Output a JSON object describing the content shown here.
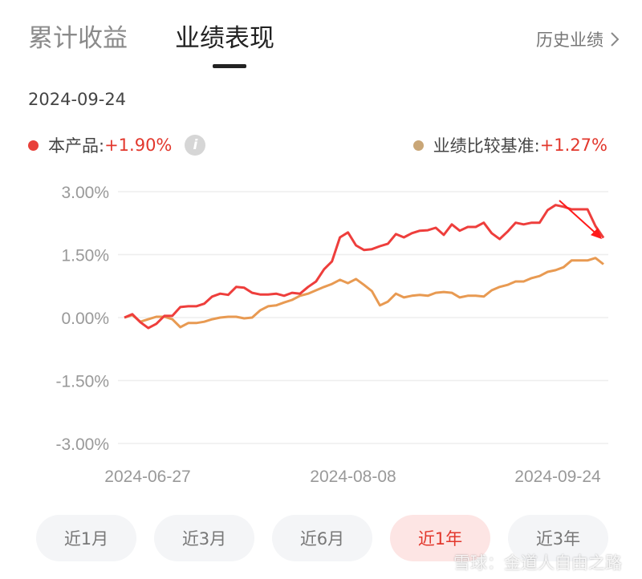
{
  "tabs": [
    {
      "label": "累计收益",
      "active": false
    },
    {
      "label": "业绩表现",
      "active": true
    }
  ],
  "history_link": {
    "label": "历史业绩",
    "icon": "chevron-right-icon"
  },
  "date": "2024-09-24",
  "legend": {
    "product": {
      "label": "本产品:",
      "value": "+1.90%",
      "color": "#e8403a"
    },
    "info_icon": "i",
    "benchmark": {
      "label": "业绩比较基准:",
      "value": "+1.27%",
      "color": "#c9a677"
    }
  },
  "chart_data": {
    "type": "line",
    "title": "",
    "ylim": [
      -3.0,
      3.0
    ],
    "yticks": [
      "3.00%",
      "1.50%",
      "0.00%",
      "-1.50%",
      "-3.00%"
    ],
    "ytick_values": [
      3.0,
      1.5,
      0,
      -1.5,
      -3.0
    ],
    "xticks": [
      "2024-06-27",
      "2024-08-08",
      "2024-09-24"
    ],
    "grid": true,
    "x_start": "2024-06-27",
    "x_end": "2024-09-24",
    "series": [
      {
        "name": "本产品",
        "color": "#ee3e3c",
        "values": [
          0,
          0.08,
          -0.11,
          -0.25,
          -0.15,
          0.04,
          0.04,
          0.25,
          0.27,
          0.27,
          0.33,
          0.5,
          0.57,
          0.54,
          0.73,
          0.71,
          0.59,
          0.55,
          0.55,
          0.57,
          0.52,
          0.59,
          0.57,
          0.73,
          0.86,
          1.15,
          1.34,
          1.91,
          2.03,
          1.72,
          1.61,
          1.63,
          1.7,
          1.76,
          1.99,
          1.91,
          2.01,
          2.07,
          2.08,
          2.14,
          1.97,
          2.22,
          2.07,
          2.16,
          2.16,
          2.26,
          2.01,
          1.87,
          2.05,
          2.26,
          2.22,
          2.26,
          2.26,
          2.56,
          2.68,
          2.64,
          2.58,
          2.58,
          2.58,
          2.18,
          1.9
        ]
      },
      {
        "name": "业绩比较基准",
        "color": "#e89a52",
        "values": [
          0,
          0.06,
          -0.1,
          -0.04,
          0.02,
          0.02,
          -0.04,
          -0.23,
          -0.13,
          -0.13,
          -0.1,
          -0.04,
          0,
          0.02,
          0.02,
          -0.02,
          0,
          0.17,
          0.27,
          0.29,
          0.36,
          0.42,
          0.52,
          0.57,
          0.65,
          0.73,
          0.8,
          0.9,
          0.82,
          0.92,
          0.78,
          0.63,
          0.29,
          0.38,
          0.57,
          0.48,
          0.52,
          0.54,
          0.52,
          0.59,
          0.61,
          0.59,
          0.48,
          0.52,
          0.52,
          0.5,
          0.65,
          0.73,
          0.78,
          0.86,
          0.86,
          0.94,
          0.99,
          1.09,
          1.13,
          1.2,
          1.36,
          1.36,
          1.36,
          1.42,
          1.27
        ]
      }
    ],
    "annotation": {
      "type": "arrow",
      "color": "#ff1a1a",
      "from_value": 2.79,
      "to_value": 1.87
    }
  },
  "range_buttons": [
    {
      "label": "近1月",
      "active": false
    },
    {
      "label": "近3月",
      "active": false
    },
    {
      "label": "近6月",
      "active": false
    },
    {
      "label": "近1年",
      "active": true
    },
    {
      "label": "近3年",
      "active": false
    }
  ],
  "watermark": "雪球：金道人自由之路"
}
